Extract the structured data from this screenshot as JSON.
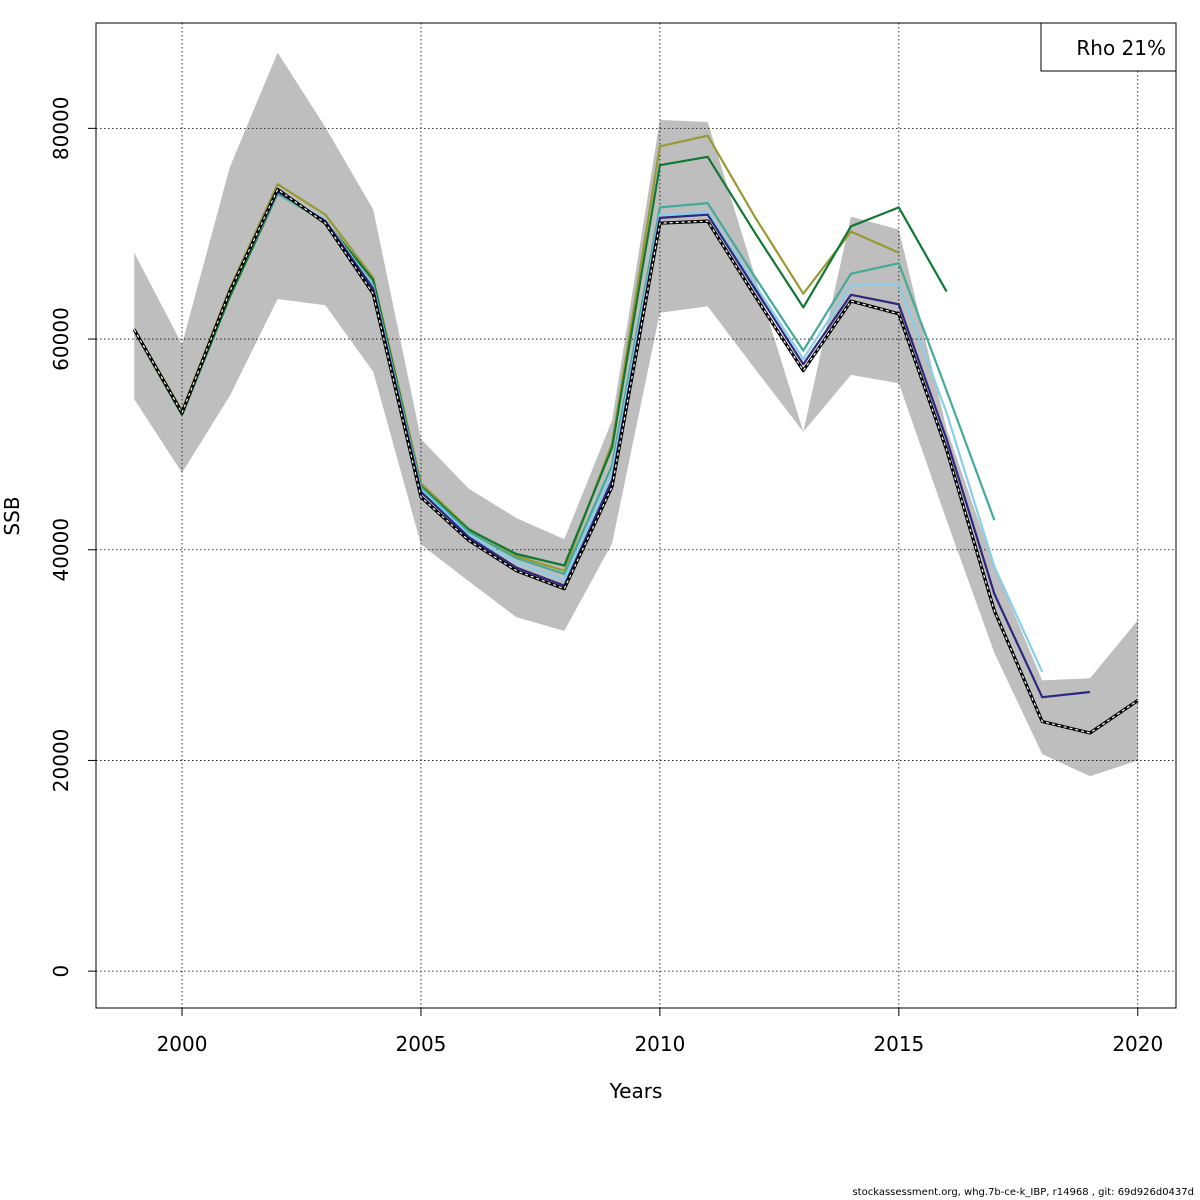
{
  "chart_data": {
    "type": "line",
    "xlabel": "Years",
    "ylabel": "SSB",
    "xlim": [
      1998.2,
      2020.8
    ],
    "ylim": [
      -3500,
      90000
    ],
    "xticks": [
      2000,
      2005,
      2010,
      2015,
      2020
    ],
    "yticks": [
      0,
      20000,
      40000,
      60000,
      80000
    ],
    "x_tick_labels": [
      "2000",
      "2005",
      "2010",
      "2015",
      "2020"
    ],
    "y_tick_labels": [
      "0",
      "20000",
      "40000",
      "60000",
      "80000"
    ],
    "grid": true,
    "grid_style": "dotted",
    "legend": {
      "text": "Rho 21%",
      "placement": "top-right"
    },
    "confidence_band": {
      "color": "#bebebe",
      "x": [
        1999,
        2000,
        2001,
        2002,
        2003,
        2004,
        2005,
        2006,
        2007,
        2008,
        2009,
        2010,
        2011,
        2012,
        2013,
        2014,
        2015,
        2016,
        2017,
        2018,
        2019,
        2020
      ],
      "upper": [
        68200,
        59500,
        76300,
        87200,
        80100,
        72300,
        50500,
        45800,
        43000,
        41000,
        52300,
        80800,
        80600,
        65800,
        51200,
        71600,
        70400,
        51500,
        38400,
        27600,
        27800,
        33300
      ],
      "lower": [
        54300,
        47300,
        54600,
        63800,
        63200,
        56900,
        40500,
        37000,
        33600,
        32300,
        40600,
        62500,
        63100,
        57100,
        51200,
        56600,
        55800,
        42800,
        30200,
        20600,
        18500,
        20000
      ]
    },
    "series": [
      {
        "color": "#000000",
        "style": "dashed-black-with-white",
        "x": [
          1999,
          2000,
          2001,
          2002,
          2003,
          2004,
          2005,
          2006,
          2007,
          2008,
          2009,
          2010,
          2011,
          2012,
          2013,
          2014,
          2015,
          2016,
          2017,
          2018,
          2019,
          2020
        ],
        "values": [
          60900,
          53000,
          64500,
          74200,
          71000,
          64300,
          45000,
          40900,
          38000,
          36300,
          46000,
          71000,
          71200,
          64000,
          57000,
          63600,
          62400,
          49500,
          34200,
          23700,
          22600,
          25700
        ]
      },
      {
        "color": "#2e2780",
        "x": [
          1999,
          2000,
          2001,
          2002,
          2003,
          2004,
          2005,
          2006,
          2007,
          2008,
          2009,
          2010,
          2011,
          2012,
          2013,
          2014,
          2015,
          2016,
          2017,
          2018,
          2019
        ],
        "values": [
          60900,
          53000,
          64500,
          74000,
          71200,
          64800,
          45500,
          41200,
          38300,
          36600,
          46600,
          71500,
          71800,
          64700,
          57600,
          64200,
          63300,
          50500,
          35800,
          26000,
          26500
        ]
      },
      {
        "color": "#87ceeb",
        "x": [
          1999,
          2000,
          2001,
          2002,
          2003,
          2004,
          2005,
          2006,
          2007,
          2008,
          2009,
          2010,
          2011,
          2012,
          2013,
          2014,
          2015,
          2016,
          2017,
          2018
        ],
        "values": [
          60900,
          53000,
          64500,
          74000,
          71300,
          65000,
          45700,
          41400,
          38800,
          37100,
          47300,
          71800,
          72000,
          65100,
          58100,
          65100,
          65200,
          53000,
          38400,
          28400
        ]
      },
      {
        "color": "#44aa99",
        "x": [
          1999,
          2000,
          2001,
          2002,
          2003,
          2004,
          2005,
          2006,
          2007,
          2008,
          2009,
          2010,
          2011,
          2012,
          2013,
          2014,
          2015,
          2016,
          2017
        ],
        "values": [
          60900,
          53000,
          64500,
          73800,
          71100,
          65100,
          45900,
          41700,
          39200,
          37700,
          48000,
          72500,
          72900,
          65800,
          58900,
          66200,
          67200,
          55100,
          42800
        ]
      },
      {
        "color": "#117733",
        "x": [
          1999,
          2000,
          2001,
          2002,
          2003,
          2004,
          2005,
          2006,
          2007,
          2008,
          2009,
          2010,
          2011,
          2012,
          2013,
          2014,
          2015,
          2016
        ],
        "values": [
          60800,
          52800,
          64000,
          73800,
          71200,
          65600,
          46000,
          41900,
          39600,
          38500,
          49700,
          76500,
          77300,
          70000,
          63000,
          70700,
          72500,
          64500
        ]
      },
      {
        "color": "#999933",
        "x": [
          1999,
          2000,
          2001,
          2002,
          2003,
          2004,
          2005,
          2006,
          2007,
          2008,
          2009,
          2010,
          2011,
          2012,
          2013,
          2014,
          2015
        ],
        "values": [
          61000,
          53200,
          64800,
          74700,
          71800,
          65800,
          46300,
          42000,
          39400,
          38000,
          50100,
          78300,
          79300,
          71500,
          64300,
          70200,
          68200
        ]
      }
    ]
  },
  "footer": "stockassessment.org, whg.7b-ce-k_IBP, r14968 , git: 69d926d0437d"
}
